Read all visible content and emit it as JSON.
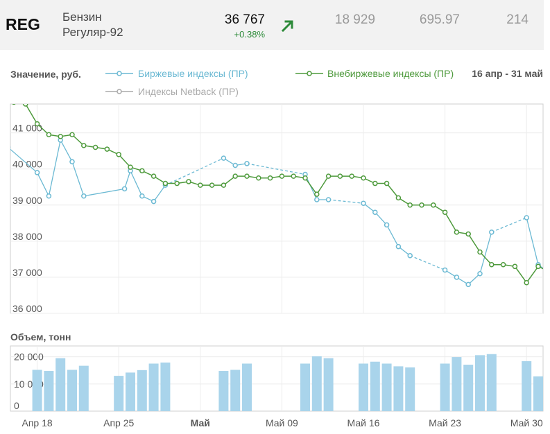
{
  "ticker": {
    "code": "REG",
    "name_line1": "Бензин",
    "name_line2": "Регуляр-92",
    "price": "36 767",
    "change": "+0.38%",
    "trend_icon": "arrow-up-right-icon",
    "stat1": "18 929",
    "stat2": "695.97",
    "stat3": "214"
  },
  "colors": {
    "exchange": "#6bb9d3",
    "otc": "#4e9a3c",
    "netback": "#aaaaaa",
    "volume": "#a9d4eb"
  },
  "chart_data": [
    {
      "type": "line",
      "title": "Значение, руб.",
      "period": "16 апр - 31 май",
      "ylim": [
        36000,
        41800
      ],
      "y_ticks": [
        36000,
        37000,
        38000,
        39000,
        40000,
        41000
      ],
      "y_tick_labels": [
        "36 000",
        "37 000",
        "38 000",
        "39 000",
        "40 000",
        "41 000"
      ],
      "x_ticks": [
        2,
        9,
        16,
        23,
        30,
        37,
        44
      ],
      "x_tick_labels": [
        "Апр 18",
        "Апр 25",
        "Май",
        "Май 09",
        "Май 16",
        "Май 23",
        "Май 30"
      ],
      "xlim": [
        0,
        45.6
      ],
      "series": [
        {
          "name": "Биржевые индексы (ПР)",
          "x": [
            -0.5,
            2,
            3,
            4,
            5,
            6,
            9.5,
            10,
            11,
            12,
            13,
            18,
            19,
            20,
            25,
            26,
            27,
            30,
            31,
            32,
            33,
            34,
            37,
            38,
            39,
            40,
            41,
            44,
            45,
            46
          ],
          "values": [
            40600,
            39900,
            39250,
            40800,
            40200,
            39250,
            39450,
            39950,
            39250,
            39100,
            39550,
            40300,
            40100,
            40150,
            39850,
            39150,
            39150,
            39050,
            38800,
            38450,
            37850,
            37600,
            37200,
            37000,
            36800,
            37100,
            38250,
            38650,
            37350,
            37100
          ],
          "gaps_before": [
            6,
            10,
            18,
            25,
            30,
            37,
            44
          ]
        },
        {
          "name": "Внебиржевые индексы (ПР)",
          "x": [
            0,
            1,
            2,
            3,
            4,
            5,
            6,
            7,
            8,
            9,
            10,
            11,
            12,
            13,
            14,
            15,
            16,
            17,
            18,
            19,
            20,
            21,
            22,
            23,
            24,
            25,
            26,
            27,
            28,
            29,
            30,
            31,
            32,
            33,
            34,
            35,
            36,
            37,
            38,
            39,
            40,
            41,
            42,
            43,
            44,
            45,
            46
          ],
          "values": [
            41850,
            41800,
            41250,
            40950,
            40900,
            40950,
            40650,
            40600,
            40550,
            40400,
            40050,
            39950,
            39800,
            39600,
            39600,
            39650,
            39550,
            39550,
            39550,
            39800,
            39800,
            39750,
            39750,
            39800,
            39800,
            39750,
            39300,
            39800,
            39800,
            39800,
            39750,
            39600,
            39600,
            39200,
            39000,
            39000,
            39000,
            38800,
            38250,
            38200,
            37700,
            37350,
            37350,
            37300,
            36850,
            37300,
            37150
          ]
        },
        {
          "name": "Индексы Netback (ПР)",
          "x": [],
          "values": []
        }
      ]
    },
    {
      "type": "bar",
      "title": "Объем, тонн",
      "ylim": [
        0,
        24000
      ],
      "y_ticks": [
        0,
        10000,
        20000
      ],
      "y_tick_labels": [
        "0",
        "10 000",
        "20 000"
      ],
      "x": [
        2,
        3,
        4,
        5,
        6,
        9,
        10,
        11,
        12,
        13,
        18,
        19,
        20,
        25,
        26,
        27,
        30,
        31,
        32,
        33,
        34,
        37,
        38,
        39,
        40,
        41,
        44,
        45
      ],
      "values": [
        15200,
        14800,
        19500,
        15200,
        16700,
        13000,
        14200,
        15100,
        17500,
        17900,
        14800,
        15200,
        17500,
        17500,
        20200,
        19500,
        17500,
        18200,
        17500,
        16500,
        16100,
        17500,
        19900,
        17100,
        20600,
        21000,
        18400,
        12800
      ]
    }
  ]
}
